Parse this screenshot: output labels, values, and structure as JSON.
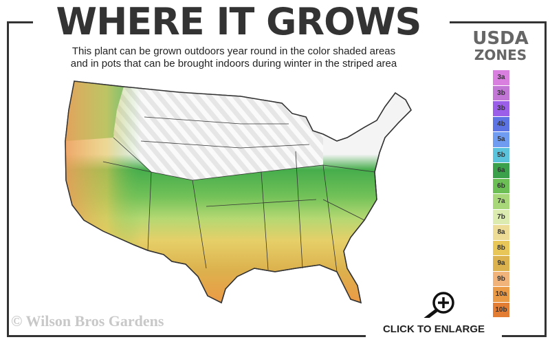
{
  "title": "WHERE IT GROWS",
  "subtitle_line1": "This plant can be grown outdoors year round in the color shaded areas",
  "subtitle_line2": "and in pots that can be brought indoors during winter in the striped area",
  "legend": {
    "heading1": "USDA",
    "heading2": "ZONES",
    "zones": [
      {
        "label": "3a",
        "color": "#d97fe0"
      },
      {
        "label": "3b",
        "color": "#c276d6"
      },
      {
        "label": "3b",
        "color": "#9b5ee8"
      },
      {
        "label": "4b",
        "color": "#5b73e3"
      },
      {
        "label": "5a",
        "color": "#6f9cf0"
      },
      {
        "label": "5b",
        "color": "#5cc3dc"
      },
      {
        "label": "6a",
        "color": "#3aa14a"
      },
      {
        "label": "6b",
        "color": "#6bbf55"
      },
      {
        "label": "7a",
        "color": "#a8d77a"
      },
      {
        "label": "7b",
        "color": "#dcebb0"
      },
      {
        "label": "8a",
        "color": "#eddc96"
      },
      {
        "label": "8b",
        "color": "#e8c657"
      },
      {
        "label": "9a",
        "color": "#dcb24e"
      },
      {
        "label": "9b",
        "color": "#f2b37a"
      },
      {
        "label": "10a",
        "color": "#eb9a45"
      },
      {
        "label": "10b",
        "color": "#e37d33"
      }
    ]
  },
  "watermark": "© Wilson Bros Gardens",
  "enlarge_label": "CLICK TO ENLARGE",
  "icons": {
    "enlarge": "magnifier-plus-icon"
  }
}
